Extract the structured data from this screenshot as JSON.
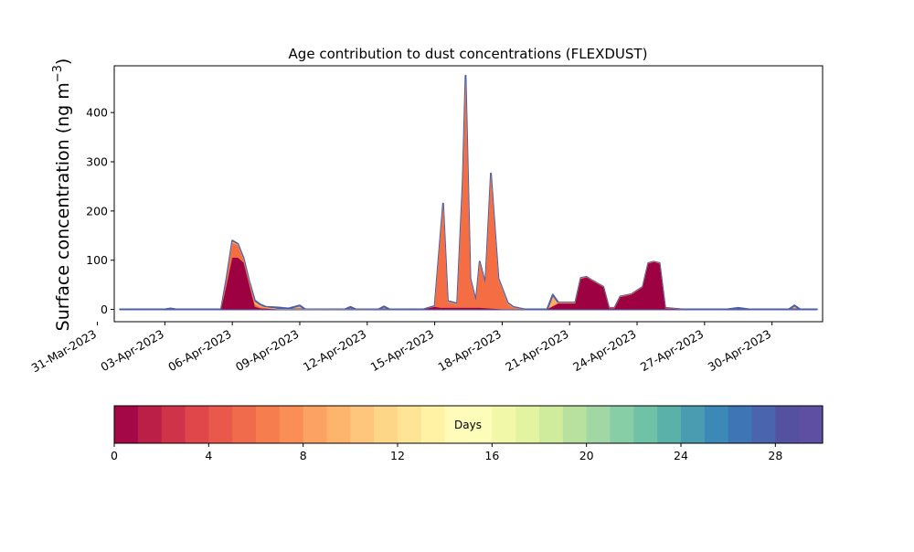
{
  "chart_data": {
    "type": "area",
    "title": "Age contribution to dust concentrations (FLEXDUST)",
    "ylabel_text": "Surface concentration (ng m",
    "ylabel_sup": "−3",
    "ylabel_close": ")",
    "ylim": [
      -25,
      495
    ],
    "yticks": [
      0,
      100,
      200,
      300,
      400
    ],
    "xlim": [
      "2023-03-31T18:00",
      "2023-05-02T06:00"
    ],
    "xtick_labels": [
      "31-Mar-2023",
      "03-Apr-2023",
      "06-Apr-2023",
      "09-Apr-2023",
      "12-Apr-2023",
      "15-Apr-2023",
      "18-Apr-2023",
      "21-Apr-2023",
      "24-Apr-2023",
      "27-Apr-2023",
      "30-Apr-2023"
    ],
    "xticks": [
      "2023-03-31",
      "2023-04-03",
      "2023-04-06",
      "2023-04-09",
      "2023-04-12",
      "2023-04-15",
      "2023-04-18",
      "2023-04-21",
      "2023-04-24",
      "2023-04-27",
      "2023-04-30"
    ],
    "series": [
      {
        "color": "#9e0142",
        "points": [
          [
            "2023-04-01T00:00",
            0
          ],
          [
            "2023-04-05T12:00",
            0
          ],
          [
            "2023-04-05T18:00",
            50
          ],
          [
            "2023-04-06T00:00",
            105
          ],
          [
            "2023-04-06T06:00",
            105
          ],
          [
            "2023-04-06T12:00",
            95
          ],
          [
            "2023-04-06T18:00",
            50
          ],
          [
            "2023-04-07T00:00",
            5
          ],
          [
            "2023-04-07T06:00",
            2
          ],
          [
            "2023-04-08T00:00",
            0
          ],
          [
            "2023-04-14T12:00",
            0
          ],
          [
            "2023-04-15T00:00",
            5
          ],
          [
            "2023-04-15T06:00",
            3
          ],
          [
            "2023-04-16T00:00",
            3
          ],
          [
            "2023-04-17T00:00",
            3
          ],
          [
            "2023-04-18T00:00",
            0
          ],
          [
            "2023-04-20T00:00",
            0
          ],
          [
            "2023-04-20T12:00",
            12
          ],
          [
            "2023-04-21T06:00",
            12
          ],
          [
            "2023-04-21T12:00",
            62
          ],
          [
            "2023-04-21T18:00",
            65
          ],
          [
            "2023-04-22T00:00",
            58
          ],
          [
            "2023-04-22T12:00",
            45
          ],
          [
            "2023-04-22T18:00",
            2
          ],
          [
            "2023-04-23T00:00",
            2
          ],
          [
            "2023-04-23T06:00",
            25
          ],
          [
            "2023-04-23T18:00",
            30
          ],
          [
            "2023-04-24T06:00",
            45
          ],
          [
            "2023-04-24T12:00",
            93
          ],
          [
            "2023-04-24T18:00",
            96
          ],
          [
            "2023-04-25T00:00",
            93
          ],
          [
            "2023-04-25T06:00",
            2
          ],
          [
            "2023-04-26T00:00",
            0
          ],
          [
            "2023-05-02T00:00",
            0
          ]
        ]
      },
      {
        "color": "#f46d43",
        "points": [
          [
            "2023-04-01T00:00",
            0
          ],
          [
            "2023-04-05T12:00",
            0
          ],
          [
            "2023-04-05T18:00",
            60
          ],
          [
            "2023-04-06T00:00",
            135
          ],
          [
            "2023-04-06T06:00",
            130
          ],
          [
            "2023-04-06T12:00",
            100
          ],
          [
            "2023-04-06T18:00",
            55
          ],
          [
            "2023-04-07T00:00",
            10
          ],
          [
            "2023-04-07T06:00",
            4
          ],
          [
            "2023-04-08T00:00",
            0
          ],
          [
            "2023-04-14T12:00",
            0
          ],
          [
            "2023-04-15T00:00",
            5
          ],
          [
            "2023-04-15T09:00",
            210
          ],
          [
            "2023-04-15T14:00",
            15
          ],
          [
            "2023-04-16T00:00",
            10
          ],
          [
            "2023-04-16T06:00",
            250
          ],
          [
            "2023-04-16T09:00",
            460
          ],
          [
            "2023-04-16T14:00",
            60
          ],
          [
            "2023-04-16T20:00",
            15
          ],
          [
            "2023-04-17T00:00",
            95
          ],
          [
            "2023-04-17T06:00",
            50
          ],
          [
            "2023-04-17T12:00",
            270
          ],
          [
            "2023-04-17T20:00",
            60
          ],
          [
            "2023-04-18T06:00",
            10
          ],
          [
            "2023-04-18T12:00",
            3
          ],
          [
            "2023-04-19T00:00",
            0
          ],
          [
            "2023-04-20T00:00",
            0
          ],
          [
            "2023-04-20T12:00",
            13
          ],
          [
            "2023-04-21T06:00",
            13
          ],
          [
            "2023-04-21T12:00",
            63
          ],
          [
            "2023-04-21T18:00",
            66
          ],
          [
            "2023-04-22T00:00",
            59
          ],
          [
            "2023-04-22T12:00",
            46
          ],
          [
            "2023-04-22T18:00",
            3
          ],
          [
            "2023-04-23T00:00",
            3
          ],
          [
            "2023-04-23T06:00",
            26
          ],
          [
            "2023-04-23T18:00",
            31
          ],
          [
            "2023-04-24T06:00",
            46
          ],
          [
            "2023-04-24T12:00",
            94
          ],
          [
            "2023-04-24T18:00",
            97
          ],
          [
            "2023-04-25T00:00",
            94
          ],
          [
            "2023-04-25T06:00",
            3
          ],
          [
            "2023-04-26T00:00",
            0
          ],
          [
            "2023-05-02T00:00",
            0
          ]
        ]
      },
      {
        "color": "#fdae61",
        "points": [
          [
            "2023-04-01T00:00",
            0
          ],
          [
            "2023-04-05T12:00",
            0
          ],
          [
            "2023-04-05T18:00",
            62
          ],
          [
            "2023-04-06T00:00",
            138
          ],
          [
            "2023-04-06T06:00",
            132
          ],
          [
            "2023-04-06T12:00",
            102
          ],
          [
            "2023-04-06T18:00",
            57
          ],
          [
            "2023-04-07T00:00",
            14
          ],
          [
            "2023-04-07T06:00",
            6
          ],
          [
            "2023-04-08T00:00",
            1
          ],
          [
            "2023-04-14T12:00",
            0
          ],
          [
            "2023-04-15T00:00",
            6
          ],
          [
            "2023-04-15T09:00",
            213
          ],
          [
            "2023-04-15T14:00",
            16
          ],
          [
            "2023-04-16T00:00",
            11
          ],
          [
            "2023-04-16T06:00",
            255
          ],
          [
            "2023-04-16T09:00",
            470
          ],
          [
            "2023-04-16T14:00",
            62
          ],
          [
            "2023-04-16T20:00",
            16
          ],
          [
            "2023-04-17T00:00",
            96
          ],
          [
            "2023-04-17T06:00",
            51
          ],
          [
            "2023-04-17T12:00",
            274
          ],
          [
            "2023-04-17T20:00",
            62
          ],
          [
            "2023-04-18T06:00",
            12
          ],
          [
            "2023-04-18T12:00",
            4
          ],
          [
            "2023-04-19T00:00",
            0
          ],
          [
            "2023-04-20T00:00",
            0
          ],
          [
            "2023-04-20T12:00",
            14
          ],
          [
            "2023-04-21T06:00",
            14
          ],
          [
            "2023-04-21T12:00",
            64
          ],
          [
            "2023-04-21T18:00",
            66
          ],
          [
            "2023-04-22T00:00",
            59
          ],
          [
            "2023-04-22T12:00",
            46
          ],
          [
            "2023-04-22T18:00",
            3
          ],
          [
            "2023-04-23T00:00",
            3
          ],
          [
            "2023-04-23T06:00",
            26
          ],
          [
            "2023-04-23T18:00",
            31
          ],
          [
            "2023-04-24T06:00",
            46
          ],
          [
            "2023-04-24T12:00",
            94
          ],
          [
            "2023-04-24T18:00",
            97
          ],
          [
            "2023-04-25T00:00",
            94
          ],
          [
            "2023-04-25T06:00",
            3
          ],
          [
            "2023-04-26T00:00",
            0
          ],
          [
            "2023-05-02T00:00",
            0
          ]
        ]
      },
      {
        "color": "#4d5fa6",
        "points": [
          [
            "2023-04-01T00:00",
            0
          ],
          [
            "2023-04-03T00:00",
            0
          ],
          [
            "2023-04-03T06:00",
            2
          ],
          [
            "2023-04-03T12:00",
            0
          ],
          [
            "2023-04-05T12:00",
            0
          ],
          [
            "2023-04-05T18:00",
            65
          ],
          [
            "2023-04-06T00:00",
            140
          ],
          [
            "2023-04-06T06:00",
            133
          ],
          [
            "2023-04-06T12:00",
            104
          ],
          [
            "2023-04-06T18:00",
            58
          ],
          [
            "2023-04-07T00:00",
            18
          ],
          [
            "2023-04-07T06:00",
            10
          ],
          [
            "2023-04-07T12:00",
            5
          ],
          [
            "2023-04-08T00:00",
            4
          ],
          [
            "2023-04-08T12:00",
            2
          ],
          [
            "2023-04-09T00:00",
            8
          ],
          [
            "2023-04-09T06:00",
            0
          ],
          [
            "2023-04-11T00:00",
            0
          ],
          [
            "2023-04-11T06:00",
            5
          ],
          [
            "2023-04-11T12:00",
            0
          ],
          [
            "2023-04-12T12:00",
            0
          ],
          [
            "2023-04-12T18:00",
            6
          ],
          [
            "2023-04-13T00:00",
            0
          ],
          [
            "2023-04-14T12:00",
            0
          ],
          [
            "2023-04-15T00:00",
            7
          ],
          [
            "2023-04-15T09:00",
            215
          ],
          [
            "2023-04-15T14:00",
            17
          ],
          [
            "2023-04-16T00:00",
            12
          ],
          [
            "2023-04-16T06:00",
            260
          ],
          [
            "2023-04-16T09:00",
            475
          ],
          [
            "2023-04-16T14:00",
            63
          ],
          [
            "2023-04-16T20:00",
            17
          ],
          [
            "2023-04-17T00:00",
            97
          ],
          [
            "2023-04-17T06:00",
            52
          ],
          [
            "2023-04-17T12:00",
            276
          ],
          [
            "2023-04-17T20:00",
            63
          ],
          [
            "2023-04-18T06:00",
            13
          ],
          [
            "2023-04-18T12:00",
            5
          ],
          [
            "2023-04-19T00:00",
            0
          ],
          [
            "2023-04-20T00:00",
            0
          ],
          [
            "2023-04-20T06:00",
            30
          ],
          [
            "2023-04-20T12:00",
            14
          ],
          [
            "2023-04-21T06:00",
            14
          ],
          [
            "2023-04-21T12:00",
            64
          ],
          [
            "2023-04-21T18:00",
            66
          ],
          [
            "2023-04-22T00:00",
            59
          ],
          [
            "2023-04-22T12:00",
            46
          ],
          [
            "2023-04-22T18:00",
            3
          ],
          [
            "2023-04-23T00:00",
            3
          ],
          [
            "2023-04-23T06:00",
            26
          ],
          [
            "2023-04-23T18:00",
            31
          ],
          [
            "2023-04-24T06:00",
            46
          ],
          [
            "2023-04-24T12:00",
            94
          ],
          [
            "2023-04-24T18:00",
            97
          ],
          [
            "2023-04-25T00:00",
            94
          ],
          [
            "2023-04-25T06:00",
            3
          ],
          [
            "2023-04-26T00:00",
            0
          ],
          [
            "2023-04-28T00:00",
            0
          ],
          [
            "2023-04-28T12:00",
            3
          ],
          [
            "2023-04-29T00:00",
            0
          ],
          [
            "2023-04-30T18:00",
            0
          ],
          [
            "2023-05-01T00:00",
            8
          ],
          [
            "2023-05-01T06:00",
            0
          ],
          [
            "2023-05-02T00:00",
            0
          ]
        ]
      }
    ],
    "colorbar": {
      "label": "Days",
      "min": 0,
      "max": 30,
      "ticks": [
        0,
        4,
        8,
        12,
        16,
        20,
        24,
        28
      ],
      "colors": [
        "#a50846",
        "#bb1e47",
        "#cf3349",
        "#df474b",
        "#e8584b",
        "#f06b4b",
        "#f67d4e",
        "#f98f56",
        "#fca262",
        "#fdb56e",
        "#fec67c",
        "#fed688",
        "#fee596",
        "#fff2a5",
        "#fffbb8",
        "#fbfdb8",
        "#f1f9a8",
        "#e3f4a0",
        "#cfeb9c",
        "#b8e1a0",
        "#a0d7a4",
        "#87cda5",
        "#70c2a6",
        "#5ab1a9",
        "#4a9db0",
        "#3c89b8",
        "#3d75b5",
        "#4a64ad",
        "#5452a0",
        "#5e4fa2"
      ]
    }
  }
}
